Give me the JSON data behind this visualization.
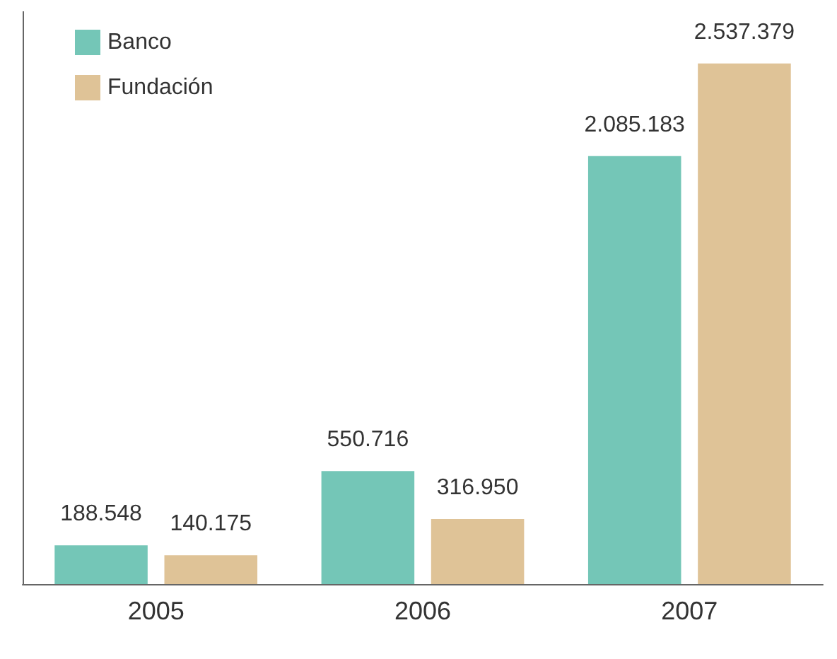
{
  "chart_data": {
    "type": "bar",
    "categories": [
      "2005",
      "2006",
      "2007"
    ],
    "series": [
      {
        "name": "Banco",
        "color": "#74c6b7",
        "values": [
          188548,
          550716,
          2085183
        ],
        "value_labels": [
          "188.548",
          "550.716",
          "2.085.183"
        ]
      },
      {
        "name": "Fundación",
        "color": "#dfc397",
        "values": [
          140175,
          316950,
          2537379
        ],
        "value_labels": [
          "140.175",
          "316.950",
          "2.537.379"
        ]
      }
    ],
    "legend": "top left",
    "grid": false,
    "tick_labels": "x"
  }
}
